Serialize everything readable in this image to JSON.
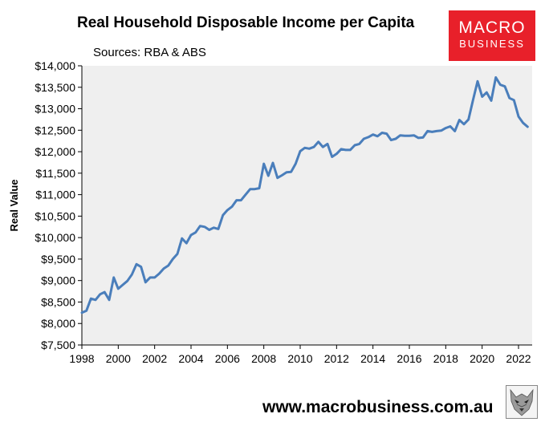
{
  "chart_data": {
    "type": "line",
    "title": "Real Household Disposable Income per Capita",
    "subtitle": "Sources: RBA & ABS",
    "ylabel": "Real Value",
    "xlabel": "",
    "xlim": [
      1998,
      2022.75
    ],
    "ylim": [
      7500,
      14000
    ],
    "x_ticks": [
      1998,
      2000,
      2002,
      2004,
      2006,
      2008,
      2010,
      2012,
      2014,
      2016,
      2018,
      2020,
      2022
    ],
    "x_tick_labels": [
      "1998",
      "2000",
      "2002",
      "2004",
      "2006",
      "2008",
      "2010",
      "2012",
      "2014",
      "2016",
      "2018",
      "2020",
      "2022"
    ],
    "y_ticks": [
      7500,
      8000,
      8500,
      9000,
      9500,
      10000,
      10500,
      11000,
      11500,
      12000,
      12500,
      13000,
      13500,
      14000
    ],
    "y_tick_labels": [
      "$7,500",
      "$8,000",
      "$8,500",
      "$9,000",
      "$9,500",
      "$10,000",
      "$10,500",
      "$11,000",
      "$11,500",
      "$12,000",
      "$12,500",
      "$13,000",
      "$13,500",
      "$14,000"
    ],
    "grid": false,
    "legend": "none",
    "series": [
      {
        "color": "#4a7ebb",
        "points": [
          [
            1998.0,
            8250
          ],
          [
            1998.25,
            8300
          ],
          [
            1998.5,
            8580
          ],
          [
            1998.75,
            8550
          ],
          [
            1999.0,
            8680
          ],
          [
            1999.25,
            8730
          ],
          [
            1999.5,
            8550
          ],
          [
            1999.75,
            9070
          ],
          [
            2000.0,
            8810
          ],
          [
            2000.25,
            8900
          ],
          [
            2000.5,
            8990
          ],
          [
            2000.75,
            9140
          ],
          [
            2001.0,
            9380
          ],
          [
            2001.25,
            9320
          ],
          [
            2001.5,
            8960
          ],
          [
            2001.75,
            9070
          ],
          [
            2002.0,
            9070
          ],
          [
            2002.25,
            9160
          ],
          [
            2002.5,
            9280
          ],
          [
            2002.75,
            9350
          ],
          [
            2003.0,
            9500
          ],
          [
            2003.25,
            9620
          ],
          [
            2003.5,
            9980
          ],
          [
            2003.75,
            9870
          ],
          [
            2004.0,
            10060
          ],
          [
            2004.25,
            10120
          ],
          [
            2004.5,
            10270
          ],
          [
            2004.75,
            10250
          ],
          [
            2005.0,
            10180
          ],
          [
            2005.25,
            10230
          ],
          [
            2005.5,
            10200
          ],
          [
            2005.75,
            10520
          ],
          [
            2006.0,
            10640
          ],
          [
            2006.25,
            10720
          ],
          [
            2006.5,
            10870
          ],
          [
            2006.75,
            10870
          ],
          [
            2007.0,
            11000
          ],
          [
            2007.25,
            11130
          ],
          [
            2007.5,
            11130
          ],
          [
            2007.75,
            11150
          ],
          [
            2008.0,
            11720
          ],
          [
            2008.25,
            11440
          ],
          [
            2008.5,
            11740
          ],
          [
            2008.75,
            11390
          ],
          [
            2009.0,
            11450
          ],
          [
            2009.25,
            11520
          ],
          [
            2009.5,
            11530
          ],
          [
            2009.75,
            11720
          ],
          [
            2010.0,
            12010
          ],
          [
            2010.25,
            12090
          ],
          [
            2010.5,
            12070
          ],
          [
            2010.75,
            12110
          ],
          [
            2011.0,
            12230
          ],
          [
            2011.25,
            12110
          ],
          [
            2011.5,
            12180
          ],
          [
            2011.75,
            11880
          ],
          [
            2012.0,
            11950
          ],
          [
            2012.25,
            12060
          ],
          [
            2012.5,
            12040
          ],
          [
            2012.75,
            12040
          ],
          [
            2013.0,
            12150
          ],
          [
            2013.25,
            12180
          ],
          [
            2013.5,
            12300
          ],
          [
            2013.75,
            12340
          ],
          [
            2014.0,
            12400
          ],
          [
            2014.25,
            12360
          ],
          [
            2014.5,
            12440
          ],
          [
            2014.75,
            12420
          ],
          [
            2015.0,
            12270
          ],
          [
            2015.25,
            12300
          ],
          [
            2015.5,
            12380
          ],
          [
            2015.75,
            12370
          ],
          [
            2016.0,
            12370
          ],
          [
            2016.25,
            12380
          ],
          [
            2016.5,
            12320
          ],
          [
            2016.75,
            12330
          ],
          [
            2017.0,
            12480
          ],
          [
            2017.25,
            12460
          ],
          [
            2017.5,
            12480
          ],
          [
            2017.75,
            12490
          ],
          [
            2018.0,
            12550
          ],
          [
            2018.25,
            12590
          ],
          [
            2018.5,
            12480
          ],
          [
            2018.75,
            12740
          ],
          [
            2019.0,
            12640
          ],
          [
            2019.25,
            12750
          ],
          [
            2019.5,
            13200
          ],
          [
            2019.75,
            13640
          ],
          [
            2020.0,
            13280
          ],
          [
            2020.25,
            13380
          ],
          [
            2020.5,
            13190
          ],
          [
            2020.75,
            13730
          ],
          [
            2021.0,
            13560
          ],
          [
            2021.25,
            13520
          ],
          [
            2021.5,
            13250
          ],
          [
            2021.75,
            13200
          ],
          [
            2022.0,
            12820
          ],
          [
            2022.25,
            12670
          ],
          [
            2022.5,
            12580
          ]
        ]
      }
    ]
  },
  "logo": {
    "line1": "MACRO",
    "line2": "BUSINESS"
  },
  "footer": {
    "url": "www.macrobusiness.com.au"
  }
}
